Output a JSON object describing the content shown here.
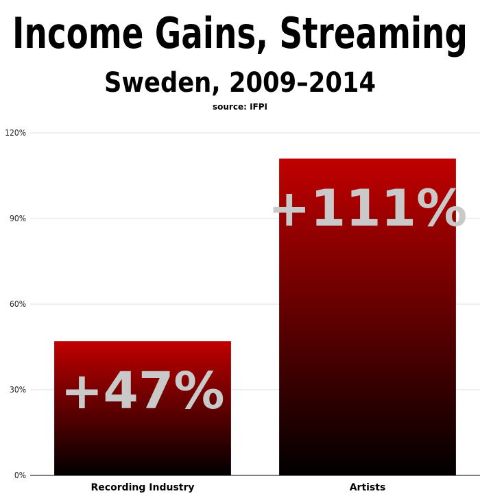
{
  "colors": {
    "bar_top": "#c00000",
    "bar_bottom": "#000000",
    "label": "#c9c9c9",
    "grid": "#e2e2e2"
  },
  "chart_data": {
    "type": "bar",
    "title": "Income Gains, Streaming",
    "subtitle": "Sweden, 2009–2014",
    "source": "source: IFPI",
    "categories": [
      "Recording Industry",
      "Artists"
    ],
    "values": [
      47,
      111
    ],
    "data_labels": [
      "+47%",
      "+111%"
    ],
    "ylim": [
      0,
      120
    ],
    "yticks": [
      0,
      30,
      60,
      90,
      120
    ],
    "ytick_labels": [
      "0%",
      "30%",
      "60%",
      "90%",
      "120%"
    ],
    "grid": true,
    "legend": "none"
  }
}
